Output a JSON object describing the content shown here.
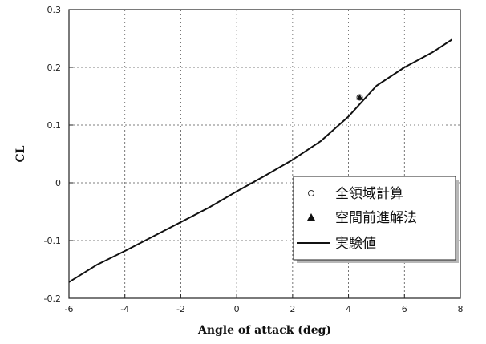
{
  "chart_data": {
    "type": "line",
    "xlabel": "Angle of attack (deg)",
    "ylabel": "CL",
    "xlim": [
      -6,
      8
    ],
    "ylim": [
      -0.2,
      0.3
    ],
    "x_ticks": [
      -6,
      -4,
      -2,
      0,
      2,
      4,
      6,
      8
    ],
    "y_ticks": [
      -0.2,
      -0.1,
      0,
      0.1,
      0.2,
      0.3
    ],
    "x_tick_labels": [
      "-6",
      "-4",
      "-2",
      "0",
      "2",
      "4",
      "6",
      "8"
    ],
    "y_tick_labels": [
      "-0.2",
      "-0.1",
      "0",
      "0.1",
      "0.2",
      "0.3"
    ],
    "grid": true,
    "legend_position": "bottom-right",
    "series": [
      {
        "name": "全領域計算",
        "kind": "marker",
        "marker": "open-circle",
        "x": [
          4.4
        ],
        "y": [
          0.148
        ]
      },
      {
        "name": "空間前進解法",
        "kind": "marker",
        "marker": "filled-triangle",
        "x": [
          4.4
        ],
        "y": [
          0.148
        ]
      },
      {
        "name": "実験値",
        "kind": "line",
        "x": [
          -6.0,
          -5.0,
          -4.0,
          -3.0,
          -2.0,
          -1.0,
          0.0,
          1.0,
          2.0,
          3.0,
          4.0,
          5.0,
          6.0,
          7.0,
          7.7
        ],
        "y": [
          -0.172,
          -0.142,
          -0.118,
          -0.093,
          -0.068,
          -0.043,
          -0.015,
          0.012,
          0.04,
          0.072,
          0.115,
          0.168,
          0.2,
          0.226,
          0.248
        ]
      }
    ]
  }
}
